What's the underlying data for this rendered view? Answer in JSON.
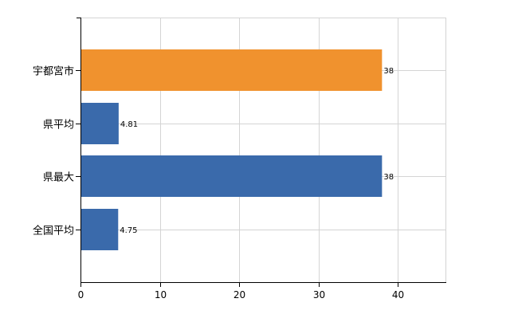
{
  "chart_data": {
    "type": "bar",
    "orientation": "horizontal",
    "categories": [
      "宇都宮市",
      "県平均",
      "県最大",
      "全国平均"
    ],
    "values": [
      38,
      4.81,
      38,
      4.75
    ],
    "data_labels": [
      "38",
      "4.81",
      "38",
      "4.75"
    ],
    "bar_colors": [
      "#f0922e",
      "#3a6aab",
      "#3a6aab",
      "#3a6aab"
    ],
    "title": "",
    "xlabel": "",
    "ylabel": "",
    "xlim": [
      0,
      46
    ],
    "x_ticks": [
      0,
      10,
      20,
      30,
      40
    ],
    "x_tick_labels": [
      "0",
      "10",
      "20",
      "30",
      "40"
    ],
    "grid": true,
    "legend": "none"
  }
}
